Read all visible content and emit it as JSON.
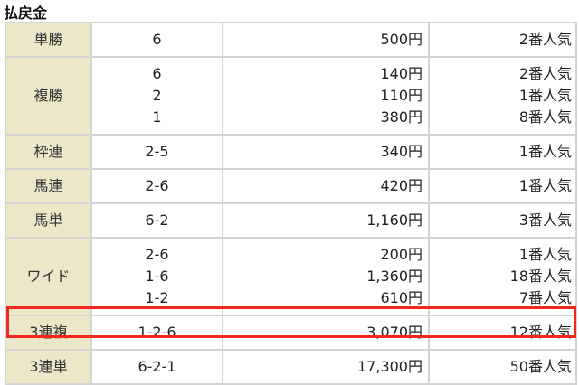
{
  "title": "払戻金",
  "highlight_color": "#f0281e",
  "rows": [
    {
      "type": "単勝",
      "entries": [
        {
          "combo": "6",
          "payout": "500円",
          "popularity": "2番人気"
        }
      ]
    },
    {
      "type": "複勝",
      "entries": [
        {
          "combo": "6",
          "payout": "140円",
          "popularity": "2番人気"
        },
        {
          "combo": "2",
          "payout": "110円",
          "popularity": "1番人気"
        },
        {
          "combo": "1",
          "payout": "380円",
          "popularity": "8番人気"
        }
      ]
    },
    {
      "type": "枠連",
      "entries": [
        {
          "combo": "2-5",
          "payout": "340円",
          "popularity": "1番人気"
        }
      ]
    },
    {
      "type": "馬連",
      "entries": [
        {
          "combo": "2-6",
          "payout": "420円",
          "popularity": "1番人気"
        }
      ]
    },
    {
      "type": "馬単",
      "entries": [
        {
          "combo": "6-2",
          "payout": "1,160円",
          "popularity": "3番人気"
        }
      ]
    },
    {
      "type": "ワイド",
      "entries": [
        {
          "combo": "2-6",
          "payout": "200円",
          "popularity": "1番人気"
        },
        {
          "combo": "1-6",
          "payout": "1,360円",
          "popularity": "18番人気"
        },
        {
          "combo": "1-2",
          "payout": "610円",
          "popularity": "7番人気"
        }
      ]
    },
    {
      "type": "3連複",
      "highlighted": true,
      "entries": [
        {
          "combo": "1-2-6",
          "payout": "3,070円",
          "popularity": "12番人気"
        }
      ]
    },
    {
      "type": "3連単",
      "entries": [
        {
          "combo": "6-2-1",
          "payout": "17,300円",
          "popularity": "50番人気"
        }
      ]
    }
  ]
}
